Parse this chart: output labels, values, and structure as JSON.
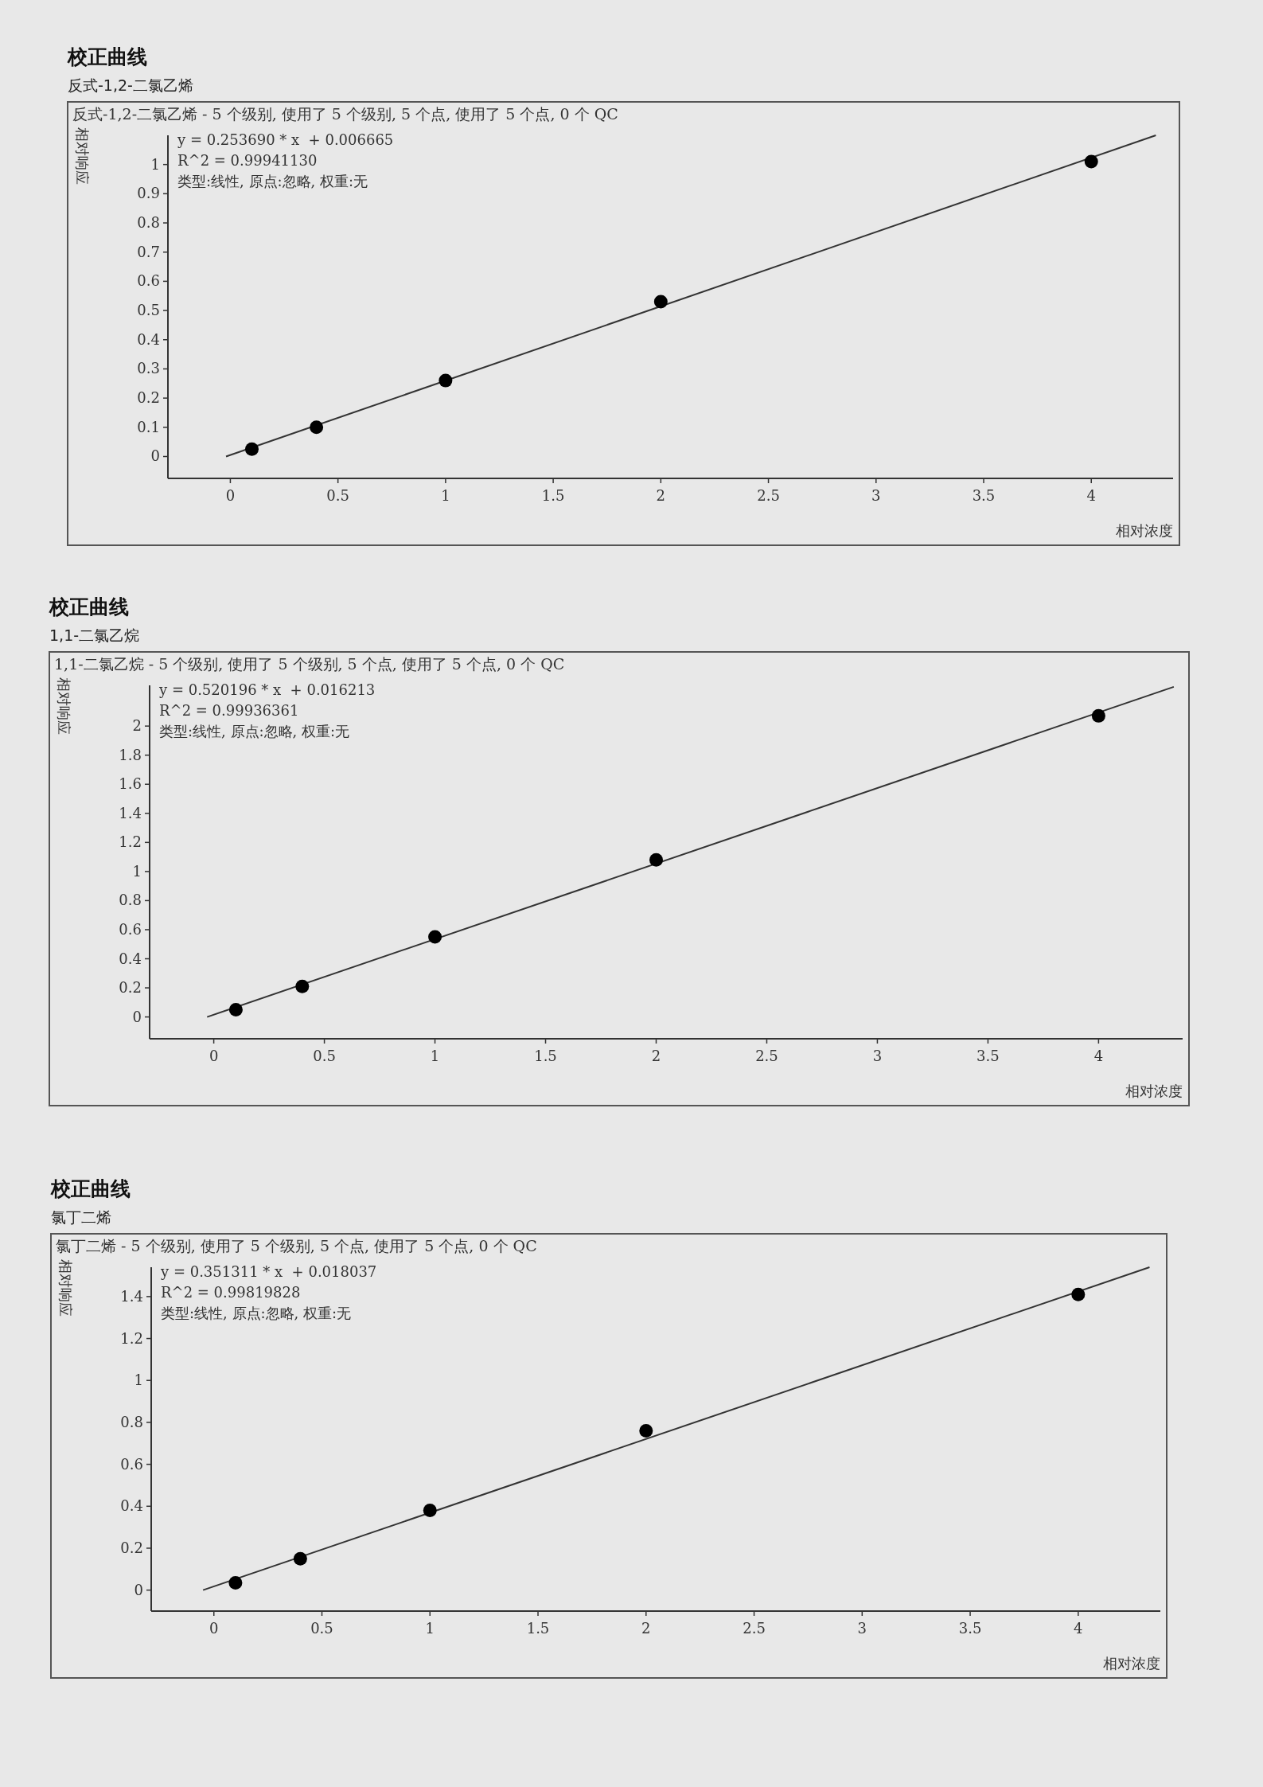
{
  "chart_data": [
    {
      "type": "scatter",
      "title": "校正曲线",
      "subtitle": "反式-1,2-二氯乙烯",
      "xlabel": "相对浓度",
      "ylabel": "相对响应",
      "annotations": [
        "反式-1,2-二氯乙烯 - 5 个级别, 使用了 5 个级别, 5 个点, 使用了 5 个点, 0 个 QC",
        "y = 0.253690 * x  + 0.006665",
        "R^2 = 0.99941130",
        "类型:线性, 原点:忽略, 权重:无"
      ],
      "series": [
        {
          "type": "scatter",
          "color": "#000000",
          "marker": "circle",
          "x": [
            0.1,
            0.4,
            1,
            2,
            4
          ],
          "values": [
            0.025,
            0.1,
            0.26,
            0.53,
            1.01
          ]
        },
        {
          "type": "line",
          "color": "#333333",
          "marker": "none",
          "x": [
            -0.02,
            4.3
          ],
          "values": [
            0,
            1.1
          ]
        }
      ],
      "xlim": [
        -0.29,
        4.38
      ],
      "ylim": [
        -0.075,
        1.1
      ],
      "xticks": [
        0,
        0.5,
        1,
        1.5,
        2,
        2.5,
        3,
        3.5,
        4
      ],
      "yticks": [
        0,
        0.1,
        0.2,
        0.3,
        0.4,
        0.5,
        0.6,
        0.7,
        0.8,
        0.9,
        1
      ],
      "grid": false
    },
    {
      "type": "scatter",
      "title": "校正曲线",
      "subtitle": "1,1-二氯乙烷",
      "xlabel": "相对浓度",
      "ylabel": "相对响应",
      "annotations": [
        "1,1-二氯乙烷 - 5 个级别, 使用了 5 个级别, 5 个点, 使用了 5 个点, 0 个 QC",
        "y = 0.520196 * x  + 0.016213",
        "R^2 = 0.99936361",
        "类型:线性, 原点:忽略, 权重:无"
      ],
      "series": [
        {
          "type": "scatter",
          "color": "#000000",
          "marker": "circle",
          "x": [
            0.1,
            0.4,
            1,
            2,
            4
          ],
          "values": [
            0.05,
            0.21,
            0.55,
            1.08,
            2.07
          ]
        },
        {
          "type": "line",
          "color": "#333333",
          "marker": "none",
          "x": [
            -0.03,
            4.34
          ],
          "values": [
            0,
            2.27
          ]
        }
      ],
      "xlim": [
        -0.29,
        4.38
      ],
      "ylim": [
        -0.15,
        2.28
      ],
      "xticks": [
        0,
        0.5,
        1,
        1.5,
        2,
        2.5,
        3,
        3.5,
        4
      ],
      "yticks": [
        0,
        0.2,
        0.4,
        0.6,
        0.8,
        1,
        1.2,
        1.4,
        1.6,
        1.8,
        2
      ],
      "grid": false
    },
    {
      "type": "scatter",
      "title": "校正曲线",
      "subtitle": "氯丁二烯",
      "xlabel": "相对浓度",
      "ylabel": "相对响应",
      "annotations": [
        "氯丁二烯 - 5 个级别, 使用了 5 个级别, 5 个点, 使用了 5 个点, 0 个 QC",
        "y = 0.351311 * x  + 0.018037",
        "R^2 = 0.99819828",
        "类型:线性, 原点:忽略, 权重:无"
      ],
      "series": [
        {
          "type": "scatter",
          "color": "#000000",
          "marker": "circle",
          "x": [
            0.1,
            0.4,
            1,
            2,
            4
          ],
          "values": [
            0.035,
            0.15,
            0.38,
            0.76,
            1.41
          ]
        },
        {
          "type": "line",
          "color": "#333333",
          "marker": "none",
          "x": [
            -0.05,
            4.33
          ],
          "values": [
            0,
            1.54
          ]
        }
      ],
      "xlim": [
        -0.29,
        4.38
      ],
      "ylim": [
        -0.1,
        1.54
      ],
      "xticks": [
        0,
        0.5,
        1,
        1.5,
        2,
        2.5,
        3,
        3.5,
        4
      ],
      "yticks": [
        0,
        0.2,
        0.4,
        0.6,
        0.8,
        1,
        1.2,
        1.4
      ],
      "grid": false
    }
  ]
}
